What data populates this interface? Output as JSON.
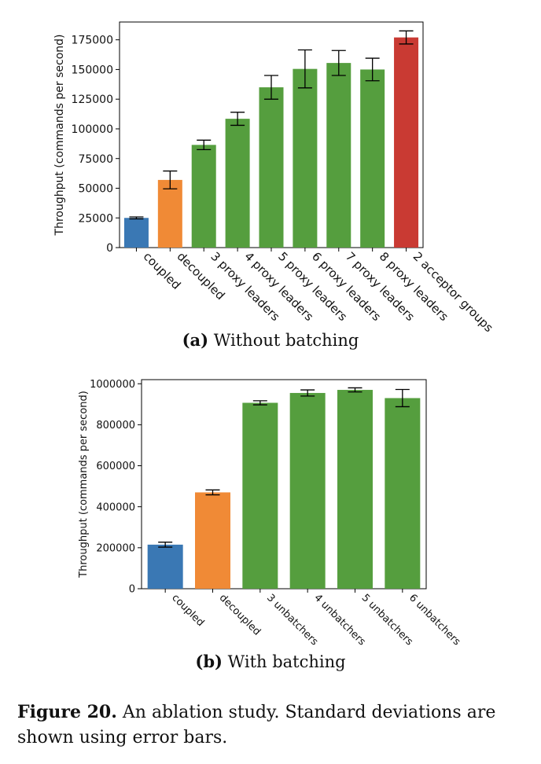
{
  "chart_data": [
    {
      "type": "bar",
      "categories": [
        "coupled",
        "decoupled",
        "3 proxy leaders",
        "4 proxy leaders",
        "5 proxy leaders",
        "6 proxy leaders",
        "7 proxy leaders",
        "8 proxy leaders",
        "2 acceptor groups"
      ],
      "values": [
        25000,
        57000,
        86500,
        108500,
        135000,
        150500,
        155500,
        150000,
        177000
      ],
      "errors": [
        800,
        7500,
        4000,
        5500,
        10000,
        16000,
        10500,
        9500,
        5500
      ],
      "colors": [
        "#3a78b4",
        "#f08a36",
        "#559e3e",
        "#559e3e",
        "#559e3e",
        "#559e3e",
        "#559e3e",
        "#559e3e",
        "#c93a33"
      ],
      "ylabel": "Throughput (commands per second)",
      "ylim": [
        0,
        190000
      ],
      "yticks": [
        0,
        25000,
        50000,
        75000,
        100000,
        125000,
        150000,
        175000
      ],
      "ytick_labels": [
        "0",
        "25000",
        "50000",
        "75000",
        "100000",
        "125000",
        "150000",
        "175000"
      ],
      "caption_label": "(a)",
      "caption_text": "Without batching"
    },
    {
      "type": "bar",
      "categories": [
        "coupled",
        "decoupled",
        "3 unbatchers",
        "4 unbatchers",
        "5 unbatchers",
        "6 unbatchers"
      ],
      "values": [
        215000,
        470000,
        907000,
        955000,
        970000,
        930000
      ],
      "errors": [
        12000,
        12000,
        10000,
        15000,
        10000,
        42000
      ],
      "colors": [
        "#3a78b4",
        "#f08a36",
        "#559e3e",
        "#559e3e",
        "#559e3e",
        "#559e3e"
      ],
      "ylabel": "Throughput (commands per second)",
      "ylim": [
        0,
        1020000
      ],
      "yticks": [
        0,
        200000,
        400000,
        600000,
        800000,
        1000000
      ],
      "ytick_labels": [
        "0",
        "200000",
        "400000",
        "600000",
        "800000",
        "1000000"
      ],
      "caption_label": "(b)",
      "caption_text": "With batching"
    }
  ],
  "figure_caption": {
    "label": "Figure 20.",
    "text": "An ablation study. Standard deviations are shown using error bars."
  }
}
